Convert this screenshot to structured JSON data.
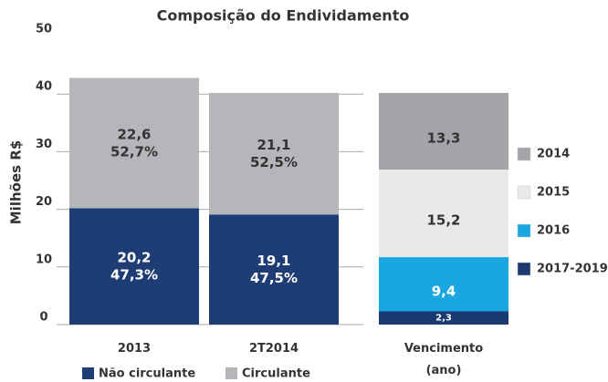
{
  "chart_data": [
    {
      "type": "stacked_bar",
      "title": "Composição do Endividamento",
      "y_label": "Milhões R$",
      "categories": [
        "2013",
        "2T2014"
      ],
      "ylim": [
        0,
        50
      ],
      "yticks": [
        0,
        10,
        20,
        30,
        40,
        50
      ],
      "grid": true,
      "legend": "bottom",
      "series": [
        {
          "name": "Não circulante",
          "color": "#1f3d75",
          "values": [
            20.2,
            19.1
          ],
          "value_labels": [
            "20,2",
            "19,1"
          ],
          "percents": [
            47.3,
            47.5
          ],
          "percent_labels": [
            "47,3%",
            "47,5%"
          ]
        },
        {
          "name": "Circulante",
          "color": "#b4b6ba",
          "values": [
            22.6,
            21.1
          ],
          "value_labels": [
            "22,6",
            "21,1"
          ],
          "percents": [
            52.7,
            52.5
          ],
          "percent_labels": [
            "52,7%",
            "52,5%"
          ]
        }
      ]
    },
    {
      "type": "stacked_bar",
      "categories": [
        "Vencimento (ano)"
      ],
      "legend": "right",
      "series": [
        {
          "name": "2017-2019",
          "color": "#1c3a72",
          "values": [
            2.3
          ],
          "value_labels": [
            "2,3"
          ]
        },
        {
          "name": "2016",
          "color": "#1aa7e1",
          "values": [
            9.4
          ],
          "value_labels": [
            "9,4"
          ]
        },
        {
          "name": "2015",
          "color": "#e9e9eb",
          "values": [
            15.2
          ],
          "value_labels": [
            "15,2"
          ]
        },
        {
          "name": "2014",
          "color": "#a2a4a8",
          "values": [
            13.3
          ],
          "value_labels": [
            "13,3"
          ]
        }
      ]
    }
  ]
}
